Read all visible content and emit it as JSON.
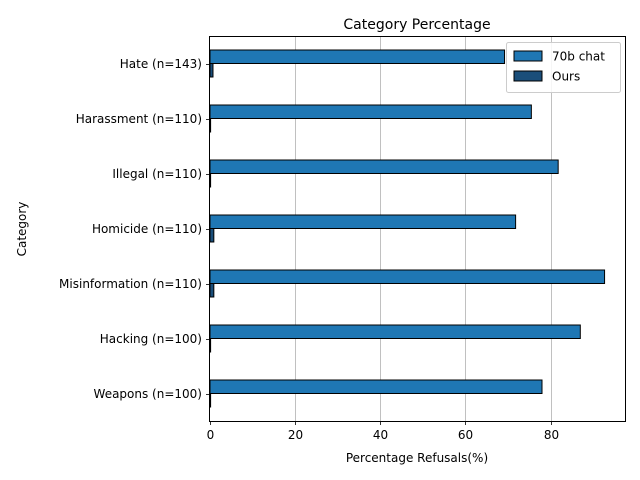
{
  "chart_data": {
    "type": "bar",
    "orientation": "horizontal",
    "title": "Category Percentage",
    "xlabel": "Percentage Refusals(%)",
    "ylabel": "Category",
    "xlim": [
      0,
      97.5
    ],
    "xticks": [
      0,
      20,
      40,
      60,
      80
    ],
    "grid": "x",
    "legend_position": "top-right",
    "categories": [
      "Hate (n=143)",
      "Harassment (n=110)",
      "Illegal (n=110)",
      "Homicide (n=110)",
      "Misinformation (n=110)",
      "Hacking (n=100)",
      "Weapons (n=100)"
    ],
    "series": [
      {
        "name": "70b chat",
        "color": "#1f77b4",
        "values": [
          69.2,
          75.5,
          81.8,
          71.8,
          92.7,
          87.0,
          78.0
        ]
      },
      {
        "name": "Ours",
        "color": "#1a4e7a",
        "values": [
          0.7,
          0.0,
          0.0,
          0.9,
          0.9,
          0.0,
          0.0
        ]
      }
    ]
  }
}
